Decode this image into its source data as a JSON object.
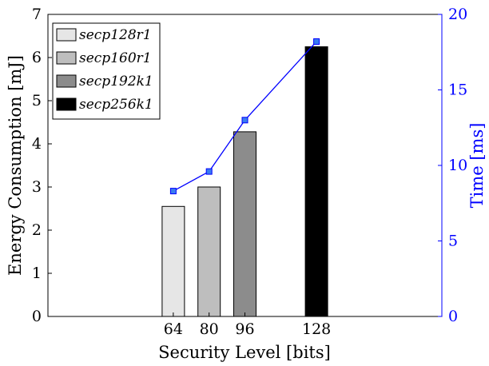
{
  "chart_data": {
    "type": "bar",
    "xlabel": "Security Level [bits]",
    "ylabel": "Energy Consumption [mJ]",
    "y2label": "Time [ms]",
    "xlim": [
      8,
      184
    ],
    "ylim": [
      0,
      7
    ],
    "y2lim": [
      0,
      20
    ],
    "x_ticks": [
      64,
      80,
      96,
      128
    ],
    "y_ticks": [
      0,
      1,
      2,
      3,
      4,
      5,
      6,
      7
    ],
    "y2_ticks": [
      0,
      5,
      10,
      15,
      20
    ],
    "legend_position": "top-left",
    "series": [
      {
        "name": "secp128r1",
        "x": 64,
        "value": 2.55,
        "color": "#e6e6e6"
      },
      {
        "name": "secp160r1",
        "x": 80,
        "value": 3.0,
        "color": "#bebebe"
      },
      {
        "name": "secp192k1",
        "x": 96,
        "value": 4.28,
        "color": "#8c8c8c"
      },
      {
        "name": "secp256k1",
        "x": 128,
        "value": 6.25,
        "color": "#000000"
      }
    ],
    "line_series": {
      "axis": "right",
      "color": "#0000ff",
      "marker_color": "#3a7bf0",
      "x": [
        64,
        80,
        96,
        128
      ],
      "y": [
        8.3,
        9.6,
        13.0,
        18.2
      ]
    }
  }
}
